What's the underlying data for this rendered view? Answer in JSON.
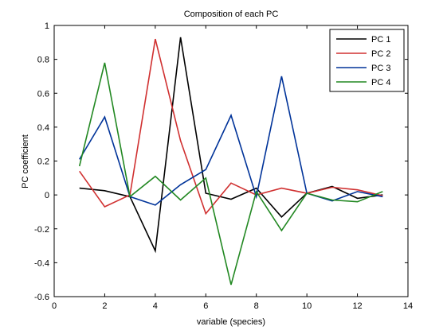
{
  "chart_data": {
    "type": "line",
    "title": "Composition of each PC",
    "xlabel": "variable (species)",
    "ylabel": "PC coefficient",
    "xlim": [
      0,
      14
    ],
    "ylim": [
      -0.6,
      1
    ],
    "xticks": [
      0,
      2,
      4,
      6,
      8,
      10,
      12,
      14
    ],
    "yticks": [
      -0.6,
      -0.4,
      -0.2,
      0,
      0.2,
      0.4,
      0.6,
      0.8,
      1
    ],
    "xtick_labels": [
      "0",
      "2",
      "4",
      "6",
      "8",
      "10",
      "12",
      "14"
    ],
    "ytick_labels": [
      "-0.6",
      "-0.4",
      "-0.2",
      "0",
      "0.2",
      "0.4",
      "0.6",
      "0.8",
      "1"
    ],
    "grid": false,
    "legend_position": "top-right",
    "x": [
      1,
      2,
      3,
      4,
      5,
      6,
      7,
      8,
      9,
      10,
      11,
      12,
      13
    ],
    "series": [
      {
        "name": "PC 1",
        "color": "#000000",
        "values": [
          0.04,
          0.025,
          -0.01,
          -0.33,
          0.93,
          0.01,
          -0.025,
          0.04,
          -0.13,
          0.01,
          0.05,
          -0.02,
          0.0
        ]
      },
      {
        "name": "PC 2",
        "color": "#d03030",
        "values": [
          0.14,
          -0.07,
          0.0,
          0.92,
          0.32,
          -0.11,
          0.07,
          0.0,
          0.04,
          0.01,
          0.045,
          0.03,
          -0.005
        ]
      },
      {
        "name": "PC 3",
        "color": "#003399",
        "values": [
          0.21,
          0.46,
          -0.01,
          -0.06,
          0.06,
          0.15,
          0.47,
          -0.01,
          0.7,
          0.01,
          -0.035,
          0.02,
          -0.01
        ]
      },
      {
        "name": "PC 4",
        "color": "#228822",
        "values": [
          0.17,
          0.78,
          -0.01,
          0.11,
          -0.03,
          0.1,
          -0.53,
          0.02,
          -0.21,
          0.01,
          -0.03,
          -0.04,
          0.02
        ]
      }
    ]
  }
}
